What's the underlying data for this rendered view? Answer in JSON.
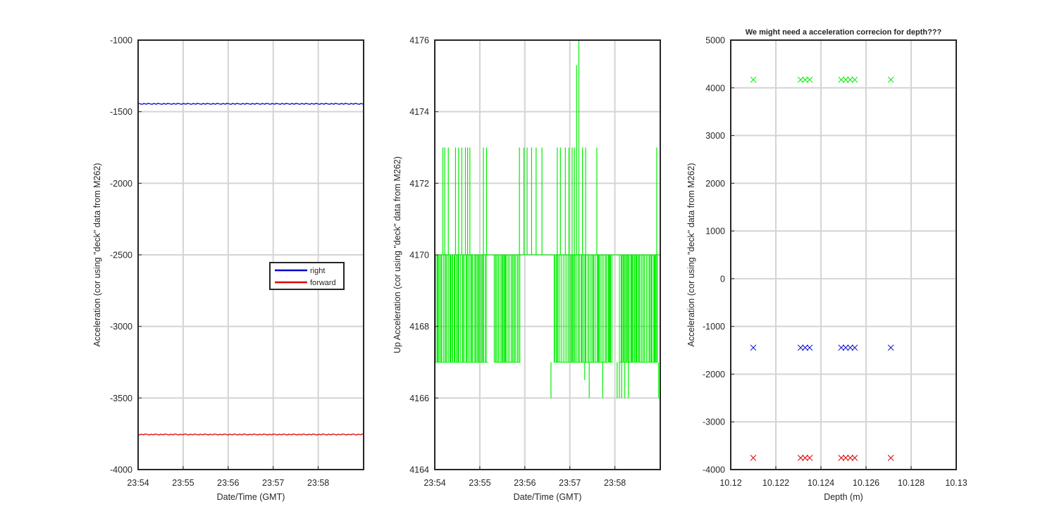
{
  "colors": {
    "right": "#0000cc",
    "forward": "#dd0000",
    "up": "#00ee00",
    "axis": "#262626",
    "grid": "#d4d4d4"
  },
  "chart_data": [
    {
      "type": "line",
      "xlabel": "Date/Time (GMT)",
      "ylabel": "Acceleration (cor using \"deck\" data from M262)",
      "xticks": [
        "23:54",
        "23:55",
        "23:56",
        "23:57",
        "23:58"
      ],
      "xrange_min": [
        0,
        5
      ],
      "ylim": [
        -4000,
        -1000
      ],
      "yticks": [
        -4000,
        -3500,
        -3000,
        -2500,
        -2000,
        -1500,
        -1000
      ],
      "grid": true,
      "legend": {
        "placement": "center-right",
        "entries": [
          "right",
          "forward"
        ]
      },
      "series": [
        {
          "name": "right",
          "color_key": "right",
          "x": [
            0,
            5
          ],
          "y": [
            -1445,
            -1445
          ]
        },
        {
          "name": "forward",
          "color_key": "forward",
          "x": [
            0,
            5
          ],
          "y": [
            -3755,
            -3755
          ]
        }
      ]
    },
    {
      "type": "line",
      "xlabel": "Date/Time (GMT)",
      "ylabel": "Up Acceleration (cor using \"deck\" data from M262)",
      "xticks": [
        "23:54",
        "23:55",
        "23:56",
        "23:57",
        "23:58"
      ],
      "xrange_min": [
        0,
        5
      ],
      "ylim": [
        4164,
        4176
      ],
      "yticks": [
        4164,
        4166,
        4168,
        4170,
        4172,
        4174,
        4176
      ],
      "grid": true,
      "series": [
        {
          "color_key": "up",
          "base_value": 4170,
          "low_value": 4167,
          "dense_bands_min": [
            [
              0,
              1.18
            ],
            [
              1.32,
              1.9
            ],
            [
              2.65,
              3.95
            ],
            [
              4.1,
              4.95
            ]
          ],
          "spikes": [
            {
              "t": 0.18,
              "y": 4173
            },
            {
              "t": 0.22,
              "y": 4173
            },
            {
              "t": 0.3,
              "y": 4173
            },
            {
              "t": 0.46,
              "y": 4173
            },
            {
              "t": 0.53,
              "y": 4173
            },
            {
              "t": 0.6,
              "y": 4173
            },
            {
              "t": 0.68,
              "y": 4173
            },
            {
              "t": 0.73,
              "y": 4173
            },
            {
              "t": 0.78,
              "y": 4173
            },
            {
              "t": 1.08,
              "y": 4173
            },
            {
              "t": 1.15,
              "y": 4173
            },
            {
              "t": 1.88,
              "y": 4173
            },
            {
              "t": 1.98,
              "y": 4173
            },
            {
              "t": 2.05,
              "y": 4173
            },
            {
              "t": 2.15,
              "y": 4173
            },
            {
              "t": 2.25,
              "y": 4173
            },
            {
              "t": 2.38,
              "y": 4173
            },
            {
              "t": 2.72,
              "y": 4173
            },
            {
              "t": 2.79,
              "y": 4173
            },
            {
              "t": 2.9,
              "y": 4173
            },
            {
              "t": 2.98,
              "y": 4173
            },
            {
              "t": 3.05,
              "y": 4173
            },
            {
              "t": 3.1,
              "y": 4173
            },
            {
              "t": 3.15,
              "y": 4175.3
            },
            {
              "t": 3.2,
              "y": 4176
            },
            {
              "t": 3.28,
              "y": 4173
            },
            {
              "t": 3.35,
              "y": 4173
            },
            {
              "t": 3.6,
              "y": 4173
            },
            {
              "t": 4.93,
              "y": 4173
            }
          ],
          "dips": [
            {
              "t": 2.58,
              "y": 4166
            },
            {
              "t": 3.33,
              "y": 4166.5
            },
            {
              "t": 3.43,
              "y": 4166
            },
            {
              "t": 3.73,
              "y": 4166
            },
            {
              "t": 4.05,
              "y": 4166
            },
            {
              "t": 4.1,
              "y": 4166
            },
            {
              "t": 4.15,
              "y": 4166
            },
            {
              "t": 4.22,
              "y": 4166
            },
            {
              "t": 4.3,
              "y": 4166
            },
            {
              "t": 4.97,
              "y": 4166
            }
          ]
        }
      ]
    },
    {
      "type": "scatter",
      "title": "We might need a acceleration correcion for depth???",
      "xlabel": "Depth (m)",
      "ylabel": "Acceleration (cor using \"deck\" data from M262)",
      "xlim": [
        10.12,
        10.13
      ],
      "xticks": [
        "10.12",
        "10.122",
        "10.124",
        "10.126",
        "10.128",
        "10.13"
      ],
      "ylim": [
        -4000,
        5000
      ],
      "yticks": [
        -4000,
        -3000,
        -2000,
        -1000,
        0,
        1000,
        2000,
        3000,
        4000,
        5000
      ],
      "grid": true,
      "marker": "x",
      "x": [
        10.121,
        10.1231,
        10.1233,
        10.1235,
        10.1249,
        10.1251,
        10.1253,
        10.1255,
        10.1271
      ],
      "series": [
        {
          "color_key": "up",
          "y": 4170
        },
        {
          "color_key": "right",
          "y": -1445
        },
        {
          "color_key": "forward",
          "y": -3755
        }
      ]
    }
  ]
}
